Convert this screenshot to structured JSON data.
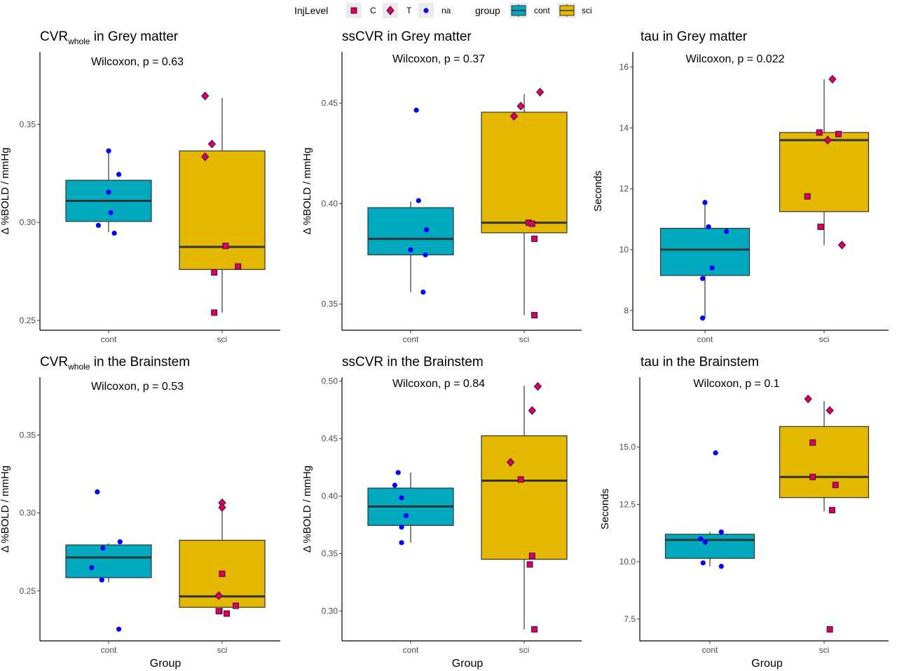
{
  "legend": {
    "injlevel_title": "InjLevel",
    "injlevel_items": [
      {
        "label": "C",
        "shape": "square"
      },
      {
        "label": "T",
        "shape": "diamond"
      },
      {
        "label": "na",
        "shape": "circle"
      }
    ],
    "group_title": "group",
    "group_items": [
      {
        "label": "cont",
        "color": "#00A9BD"
      },
      {
        "label": "sci",
        "color": "#E5B800"
      }
    ]
  },
  "colors": {
    "cont_fill": "#00A9BD",
    "sci_fill": "#E5B800",
    "point_cont": "#0000FF",
    "point_sci": "#E0004C",
    "median": "#333333"
  },
  "chart_data": [
    {
      "type": "box",
      "title_main": "CVR",
      "title_sub": "whole",
      "title_rest": " in Grey matter",
      "annotation": "Wilcoxon, p = 0.63",
      "ylabel": "Δ %BOLD / mmHg",
      "xlabel": "",
      "categories": [
        "cont",
        "sci"
      ],
      "ylim": [
        0.245,
        0.387
      ],
      "yticks": [
        0.25,
        0.3,
        0.35
      ],
      "ytick_labels": [
        "0.25",
        "0.30",
        "0.35"
      ],
      "boxes": [
        {
          "group": "cont",
          "q1": 0.3005,
          "median": 0.311,
          "q3": 0.3215,
          "lower": 0.295,
          "upper": 0.337
        },
        {
          "group": "sci",
          "q1": 0.276,
          "median": 0.2875,
          "q3": 0.3365,
          "lower": 0.254,
          "upper": 0.3635
        }
      ],
      "points": [
        {
          "x": "cont",
          "jitter": 0.0,
          "y": 0.3365,
          "level": "na"
        },
        {
          "x": "cont",
          "jitter": 0.09,
          "y": 0.3245,
          "level": "na"
        },
        {
          "x": "cont",
          "jitter": 0.0,
          "y": 0.3155,
          "level": "na"
        },
        {
          "x": "cont",
          "jitter": 0.02,
          "y": 0.305,
          "level": "na"
        },
        {
          "x": "cont",
          "jitter": -0.09,
          "y": 0.2985,
          "level": "na"
        },
        {
          "x": "cont",
          "jitter": 0.05,
          "y": 0.2945,
          "level": "na"
        },
        {
          "x": "sci",
          "jitter": -0.15,
          "y": 0.3645,
          "level": "T"
        },
        {
          "x": "sci",
          "jitter": -0.09,
          "y": 0.34,
          "level": "T"
        },
        {
          "x": "sci",
          "jitter": -0.15,
          "y": 0.3335,
          "level": "T"
        },
        {
          "x": "sci",
          "jitter": 0.03,
          "y": 0.288,
          "level": "C"
        },
        {
          "x": "sci",
          "jitter": 0.14,
          "y": 0.2775,
          "level": "C"
        },
        {
          "x": "sci",
          "jitter": -0.07,
          "y": 0.2745,
          "level": "C"
        },
        {
          "x": "sci",
          "jitter": -0.07,
          "y": 0.254,
          "level": "C"
        }
      ]
    },
    {
      "type": "box",
      "title_main": "ssCVR in Grey matter",
      "title_sub": "",
      "title_rest": "",
      "annotation": "Wilcoxon, p = 0.37",
      "ylabel": "Δ %BOLD / mmHg",
      "xlabel": "",
      "categories": [
        "cont",
        "sci"
      ],
      "ylim": [
        0.337,
        0.4755
      ],
      "yticks": [
        0.35,
        0.4,
        0.45
      ],
      "ytick_labels": [
        "0.35",
        "0.40",
        "0.45"
      ],
      "boxes": [
        {
          "group": "cont",
          "q1": 0.3745,
          "median": 0.3825,
          "q3": 0.398,
          "lower": 0.356,
          "upper": 0.401
        },
        {
          "group": "sci",
          "q1": 0.3855,
          "median": 0.3905,
          "q3": 0.4455,
          "lower": 0.3445,
          "upper": 0.4545
        }
      ],
      "points": [
        {
          "x": "cont",
          "jitter": 0.05,
          "y": 0.4465,
          "level": "na"
        },
        {
          "x": "cont",
          "jitter": 0.07,
          "y": 0.4015,
          "level": "na"
        },
        {
          "x": "cont",
          "jitter": 0.14,
          "y": 0.387,
          "level": "na"
        },
        {
          "x": "cont",
          "jitter": 0.0,
          "y": 0.377,
          "level": "na"
        },
        {
          "x": "cont",
          "jitter": 0.13,
          "y": 0.3745,
          "level": "na"
        },
        {
          "x": "cont",
          "jitter": 0.11,
          "y": 0.356,
          "level": "na"
        },
        {
          "x": "sci",
          "jitter": 0.14,
          "y": 0.4555,
          "level": "T"
        },
        {
          "x": "sci",
          "jitter": -0.03,
          "y": 0.4485,
          "level": "T"
        },
        {
          "x": "sci",
          "jitter": -0.09,
          "y": 0.4435,
          "level": "T"
        },
        {
          "x": "sci",
          "jitter": 0.04,
          "y": 0.3905,
          "level": "C"
        },
        {
          "x": "sci",
          "jitter": 0.07,
          "y": 0.39,
          "level": "C"
        },
        {
          "x": "sci",
          "jitter": 0.09,
          "y": 0.3825,
          "level": "C"
        },
        {
          "x": "sci",
          "jitter": 0.09,
          "y": 0.3445,
          "level": "C"
        }
      ]
    },
    {
      "type": "box",
      "title_main": "tau in Grey matter",
      "title_sub": "",
      "title_rest": "",
      "annotation": "Wilcoxon, p = 0.022",
      "ylabel": "Seconds",
      "xlabel": "",
      "categories": [
        "cont",
        "sci"
      ],
      "ylim": [
        7.35,
        16.5
      ],
      "yticks": [
        8,
        10,
        12,
        14,
        16
      ],
      "ytick_labels": [
        "8",
        "10",
        "12",
        "14",
        "16"
      ],
      "boxes": [
        {
          "group": "cont",
          "q1": 9.15,
          "median": 10.0,
          "q3": 10.7,
          "lower": 7.75,
          "upper": 11.55
        },
        {
          "group": "sci",
          "q1": 11.25,
          "median": 13.6,
          "q3": 13.85,
          "lower": 10.15,
          "upper": 15.6
        }
      ],
      "points": [
        {
          "x": "cont",
          "jitter": 0.0,
          "y": 11.55,
          "level": "na"
        },
        {
          "x": "cont",
          "jitter": 0.03,
          "y": 10.75,
          "level": "na"
        },
        {
          "x": "cont",
          "jitter": 0.18,
          "y": 10.6,
          "level": "na"
        },
        {
          "x": "cont",
          "jitter": 0.06,
          "y": 9.4,
          "level": "na"
        },
        {
          "x": "cont",
          "jitter": -0.02,
          "y": 9.05,
          "level": "na"
        },
        {
          "x": "cont",
          "jitter": -0.02,
          "y": 7.75,
          "level": "na"
        },
        {
          "x": "sci",
          "jitter": 0.07,
          "y": 15.6,
          "level": "T"
        },
        {
          "x": "sci",
          "jitter": 0.03,
          "y": 13.6,
          "level": "T"
        },
        {
          "x": "sci",
          "jitter": 0.15,
          "y": 10.15,
          "level": "T"
        },
        {
          "x": "sci",
          "jitter": -0.04,
          "y": 13.85,
          "level": "C"
        },
        {
          "x": "sci",
          "jitter": 0.12,
          "y": 13.8,
          "level": "C"
        },
        {
          "x": "sci",
          "jitter": -0.14,
          "y": 11.75,
          "level": "C"
        },
        {
          "x": "sci",
          "jitter": -0.03,
          "y": 10.75,
          "level": "C"
        }
      ]
    },
    {
      "type": "box",
      "title_main": "CVR",
      "title_sub": "whole",
      "title_rest": " in the Brainstem",
      "annotation": "Wilcoxon, p = 0.53",
      "ylabel": "Δ %BOLD / mmHg",
      "xlabel": "Group",
      "categories": [
        "cont",
        "sci"
      ],
      "ylim": [
        0.218,
        0.387
      ],
      "yticks": [
        0.25,
        0.3,
        0.35
      ],
      "ytick_labels": [
        "0.25",
        "0.30",
        "0.35"
      ],
      "boxes": [
        {
          "group": "cont",
          "q1": 0.2585,
          "median": 0.2715,
          "q3": 0.2795,
          "lower": 0.2555,
          "upper": 0.2805
        },
        {
          "group": "sci",
          "q1": 0.2395,
          "median": 0.2465,
          "q3": 0.2825,
          "lower": 0.235,
          "upper": 0.307
        }
      ],
      "points": [
        {
          "x": "cont",
          "jitter": -0.1,
          "y": 0.3135,
          "level": "na"
        },
        {
          "x": "cont",
          "jitter": 0.1,
          "y": 0.2815,
          "level": "na"
        },
        {
          "x": "cont",
          "jitter": -0.05,
          "y": 0.2775,
          "level": "na"
        },
        {
          "x": "cont",
          "jitter": -0.15,
          "y": 0.265,
          "level": "na"
        },
        {
          "x": "cont",
          "jitter": -0.06,
          "y": 0.257,
          "level": "na"
        },
        {
          "x": "cont",
          "jitter": 0.09,
          "y": 0.2255,
          "level": "na"
        },
        {
          "x": "sci",
          "jitter": 0.0,
          "y": 0.3065,
          "level": "T"
        },
        {
          "x": "sci",
          "jitter": 0.0,
          "y": 0.3035,
          "level": "T"
        },
        {
          "x": "sci",
          "jitter": -0.03,
          "y": 0.247,
          "level": "T"
        },
        {
          "x": "sci",
          "jitter": 0.0,
          "y": 0.261,
          "level": "C"
        },
        {
          "x": "sci",
          "jitter": 0.12,
          "y": 0.2405,
          "level": "C"
        },
        {
          "x": "sci",
          "jitter": -0.03,
          "y": 0.237,
          "level": "C"
        },
        {
          "x": "sci",
          "jitter": 0.04,
          "y": 0.2355,
          "level": "C"
        }
      ]
    },
    {
      "type": "box",
      "title_main": "ssCVR in the Brainstem",
      "title_sub": "",
      "title_rest": "",
      "annotation": "Wilcoxon, p = 0.84",
      "ylabel": "Δ %BOLD / mmHg",
      "xlabel": "Group",
      "categories": [
        "cont",
        "sci"
      ],
      "ylim": [
        0.274,
        0.5035
      ],
      "yticks": [
        0.3,
        0.35,
        0.4,
        0.45,
        0.5
      ],
      "ytick_labels": [
        "0.30",
        "0.35",
        "0.40",
        "0.45",
        "0.50"
      ],
      "boxes": [
        {
          "group": "cont",
          "q1": 0.3745,
          "median": 0.391,
          "q3": 0.407,
          "lower": 0.3595,
          "upper": 0.4205
        },
        {
          "group": "sci",
          "q1": 0.345,
          "median": 0.4135,
          "q3": 0.4525,
          "lower": 0.284,
          "upper": 0.496
        }
      ],
      "points": [
        {
          "x": "cont",
          "jitter": -0.11,
          "y": 0.4205,
          "level": "na"
        },
        {
          "x": "cont",
          "jitter": -0.14,
          "y": 0.4095,
          "level": "na"
        },
        {
          "x": "cont",
          "jitter": -0.08,
          "y": 0.3985,
          "level": "na"
        },
        {
          "x": "cont",
          "jitter": -0.04,
          "y": 0.383,
          "level": "na"
        },
        {
          "x": "cont",
          "jitter": -0.08,
          "y": 0.373,
          "level": "na"
        },
        {
          "x": "cont",
          "jitter": -0.08,
          "y": 0.3595,
          "level": "na"
        },
        {
          "x": "sci",
          "jitter": 0.12,
          "y": 0.4955,
          "level": "T"
        },
        {
          "x": "sci",
          "jitter": 0.07,
          "y": 0.4745,
          "level": "T"
        },
        {
          "x": "sci",
          "jitter": -0.12,
          "y": 0.4295,
          "level": "T"
        },
        {
          "x": "sci",
          "jitter": -0.03,
          "y": 0.4145,
          "level": "C"
        },
        {
          "x": "sci",
          "jitter": 0.07,
          "y": 0.348,
          "level": "C"
        },
        {
          "x": "sci",
          "jitter": 0.05,
          "y": 0.3405,
          "level": "C"
        },
        {
          "x": "sci",
          "jitter": 0.09,
          "y": 0.284,
          "level": "C"
        }
      ]
    },
    {
      "type": "box",
      "title_main": "tau in the Brainstem",
      "title_sub": "",
      "title_rest": "",
      "annotation": "Wilcoxon, p = 0.1",
      "ylabel": "Seconds",
      "xlabel": "Group",
      "categories": [
        "cont",
        "sci"
      ],
      "ylim": [
        6.55,
        18.05
      ],
      "yticks": [
        7.5,
        10.0,
        12.5,
        15.0
      ],
      "ytick_labels": [
        "7.5",
        "10.0",
        "12.5",
        "15.0"
      ],
      "boxes": [
        {
          "group": "cont",
          "q1": 10.15,
          "median": 10.95,
          "q3": 11.2,
          "lower": 9.8,
          "upper": 11.3
        },
        {
          "group": "sci",
          "q1": 12.8,
          "median": 13.7,
          "q3": 15.9,
          "lower": 12.2,
          "upper": 17.0
        }
      ],
      "points": [
        {
          "x": "cont",
          "jitter": 0.05,
          "y": 14.75,
          "level": "na"
        },
        {
          "x": "cont",
          "jitter": 0.1,
          "y": 11.3,
          "level": "na"
        },
        {
          "x": "cont",
          "jitter": -0.08,
          "y": 11.0,
          "level": "na"
        },
        {
          "x": "cont",
          "jitter": -0.04,
          "y": 10.85,
          "level": "na"
        },
        {
          "x": "cont",
          "jitter": -0.06,
          "y": 9.95,
          "level": "na"
        },
        {
          "x": "cont",
          "jitter": 0.1,
          "y": 9.8,
          "level": "na"
        },
        {
          "x": "sci",
          "jitter": -0.14,
          "y": 17.1,
          "level": "T"
        },
        {
          "x": "sci",
          "jitter": 0.05,
          "y": 16.6,
          "level": "T"
        },
        {
          "x": "sci",
          "jitter": -0.1,
          "y": 15.2,
          "level": "C"
        },
        {
          "x": "sci",
          "jitter": -0.1,
          "y": 13.7,
          "level": "C"
        },
        {
          "x": "sci",
          "jitter": 0.1,
          "y": 13.35,
          "level": "C"
        },
        {
          "x": "sci",
          "jitter": 0.07,
          "y": 12.25,
          "level": "C"
        },
        {
          "x": "sci",
          "jitter": 0.05,
          "y": 7.05,
          "level": "C"
        }
      ]
    }
  ]
}
